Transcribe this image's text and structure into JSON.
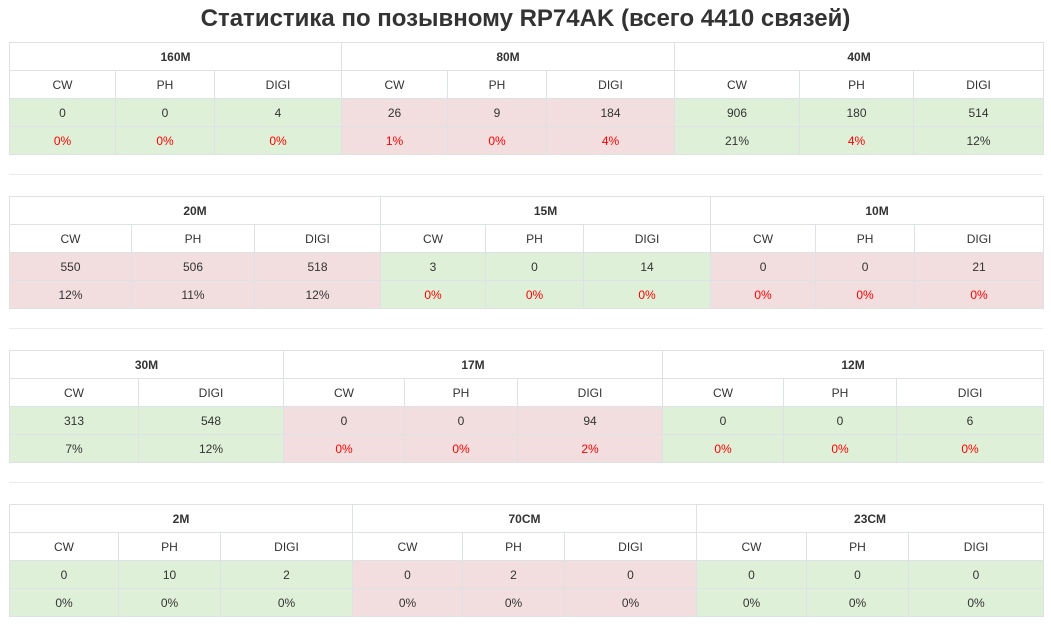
{
  "title": "Статистика по позывному RP74AK (всего 4410 связей)",
  "colors": {
    "good": "#dff0d8",
    "bad": "#f2dede",
    "zero_pct": "#ff0000"
  },
  "blocks": [
    {
      "bands": [
        {
          "name": "160M",
          "status": "good",
          "modes": [
            "CW",
            "PH",
            "DIGI"
          ],
          "counts": [
            "0",
            "0",
            "4"
          ],
          "percents": [
            "0%",
            "0%",
            "0%"
          ],
          "zero": [
            true,
            true,
            true
          ]
        },
        {
          "name": "80M",
          "status": "bad",
          "modes": [
            "CW",
            "PH",
            "DIGI"
          ],
          "counts": [
            "26",
            "9",
            "184"
          ],
          "percents": [
            "1%",
            "0%",
            "4%"
          ],
          "zero": [
            true,
            true,
            true
          ]
        },
        {
          "name": "40M",
          "status": "good",
          "modes": [
            "CW",
            "PH",
            "DIGI"
          ],
          "counts": [
            "906",
            "180",
            "514"
          ],
          "percents": [
            "21%",
            "4%",
            "12%"
          ],
          "zero": [
            false,
            true,
            false
          ]
        }
      ]
    },
    {
      "bands": [
        {
          "name": "20M",
          "status": "bad",
          "modes": [
            "CW",
            "PH",
            "DIGI"
          ],
          "counts": [
            "550",
            "506",
            "518"
          ],
          "percents": [
            "12%",
            "11%",
            "12%"
          ],
          "zero": [
            false,
            false,
            false
          ]
        },
        {
          "name": "15M",
          "status": "good",
          "modes": [
            "CW",
            "PH",
            "DIGI"
          ],
          "counts": [
            "3",
            "0",
            "14"
          ],
          "percents": [
            "0%",
            "0%",
            "0%"
          ],
          "zero": [
            true,
            true,
            true
          ]
        },
        {
          "name": "10M",
          "status": "bad",
          "modes": [
            "CW",
            "PH",
            "DIGI"
          ],
          "counts": [
            "0",
            "0",
            "21"
          ],
          "percents": [
            "0%",
            "0%",
            "0%"
          ],
          "zero": [
            true,
            true,
            true
          ]
        }
      ]
    },
    {
      "bands": [
        {
          "name": "30M",
          "status": "good",
          "modes": [
            "CW",
            "DIGI"
          ],
          "counts": [
            "313",
            "548"
          ],
          "percents": [
            "7%",
            "12%"
          ],
          "zero": [
            false,
            false
          ]
        },
        {
          "name": "17M",
          "status": "bad",
          "modes": [
            "CW",
            "PH",
            "DIGI"
          ],
          "counts": [
            "0",
            "0",
            "94"
          ],
          "percents": [
            "0%",
            "0%",
            "2%"
          ],
          "zero": [
            true,
            true,
            true
          ]
        },
        {
          "name": "12M",
          "status": "good",
          "modes": [
            "CW",
            "PH",
            "DIGI"
          ],
          "counts": [
            "0",
            "0",
            "6"
          ],
          "percents": [
            "0%",
            "0%",
            "0%"
          ],
          "zero": [
            true,
            true,
            true
          ]
        }
      ]
    },
    {
      "bands": [
        {
          "name": "2M",
          "status": "good",
          "modes": [
            "CW",
            "PH",
            "DIGI"
          ],
          "counts": [
            "0",
            "10",
            "2"
          ],
          "percents": [
            "0%",
            "0%",
            "0%"
          ],
          "zero": [
            false,
            false,
            false
          ]
        },
        {
          "name": "70CM",
          "status": "bad",
          "modes": [
            "CW",
            "PH",
            "DIGI"
          ],
          "counts": [
            "0",
            "2",
            "0"
          ],
          "percents": [
            "0%",
            "0%",
            "0%"
          ],
          "zero": [
            false,
            false,
            false
          ]
        },
        {
          "name": "23CM",
          "status": "good",
          "modes": [
            "CW",
            "PH",
            "DIGI"
          ],
          "counts": [
            "0",
            "0",
            "0"
          ],
          "percents": [
            "0%",
            "0%",
            "0%"
          ],
          "zero": [
            false,
            false,
            false
          ]
        }
      ]
    }
  ]
}
